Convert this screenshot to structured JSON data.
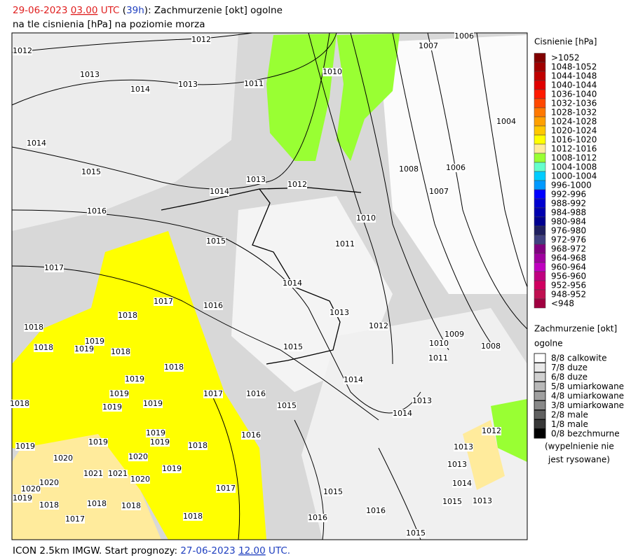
{
  "header": {
    "date": "29-06-2023",
    "hour": "03.00",
    "zone": "UTC",
    "open": "(",
    "lead": "39h",
    "close": "):",
    "title": "Zachmurzenie [okt] ogolne",
    "subtitle": "na tle cisnienia [hPa] na poziomie morza"
  },
  "footer": {
    "model": "ICON 2.5km IMGW. Start prognozy:",
    "date": "27-06-2023",
    "hour": "12.00",
    "zone": "UTC."
  },
  "pressure_legend": {
    "title": "Cisnienie [hPa]",
    "items": [
      {
        "label": ">1052",
        "color": "#800000"
      },
      {
        "label": "1048-1052",
        "color": "#a00000"
      },
      {
        "label": "1044-1048",
        "color": "#c00000"
      },
      {
        "label": "1040-1044",
        "color": "#e00000"
      },
      {
        "label": "1036-1040",
        "color": "#ff1a00"
      },
      {
        "label": "1032-1036",
        "color": "#ff4800"
      },
      {
        "label": "1028-1032",
        "color": "#ff7800"
      },
      {
        "label": "1024-1028",
        "color": "#ffa000"
      },
      {
        "label": "1020-1024",
        "color": "#ffc800"
      },
      {
        "label": "1016-1020",
        "color": "#ffff00"
      },
      {
        "label": "1012-1016",
        "color": "#ffeb9c"
      },
      {
        "label": "1008-1012",
        "color": "#99ff33"
      },
      {
        "label": "1004-1008",
        "color": "#66ffcc"
      },
      {
        "label": "1000-1004",
        "color": "#00ccff"
      },
      {
        "label": "996-1000",
        "color": "#0099ff"
      },
      {
        "label": "992-996",
        "color": "#0000ff"
      },
      {
        "label": "988-992",
        "color": "#0000d0"
      },
      {
        "label": "984-988",
        "color": "#0000b0"
      },
      {
        "label": "980-984",
        "color": "#000090"
      },
      {
        "label": "976-980",
        "color": "#202060"
      },
      {
        "label": "972-976",
        "color": "#404080"
      },
      {
        "label": "968-972",
        "color": "#800080"
      },
      {
        "label": "964-968",
        "color": "#a000a0"
      },
      {
        "label": "960-964",
        "color": "#c000c0"
      },
      {
        "label": "956-960",
        "color": "#c00080"
      },
      {
        "label": "952-956",
        "color": "#d00060"
      },
      {
        "label": "948-952",
        "color": "#c01050"
      },
      {
        "label": "<948",
        "color": "#a00040"
      }
    ]
  },
  "cloud_legend": {
    "title": "Zachmurzenie [okt]",
    "subtitle": "ogolne",
    "items": [
      {
        "label": "8/8 calkowite",
        "color": "#ffffff"
      },
      {
        "label": "7/8 duze",
        "color": "#e8e8e8"
      },
      {
        "label": "6/8 duze",
        "color": "#d0d0d0"
      },
      {
        "label": "5/8 umiarkowane",
        "color": "#b8b8b8"
      },
      {
        "label": "4/8 umiarkowane",
        "color": "#a0a0a0"
      },
      {
        "label": "3/8 umiarkowane",
        "color": "#888888"
      },
      {
        "label": "2/8 male",
        "color": "#606060"
      },
      {
        "label": "1/8 male",
        "color": "#383838"
      },
      {
        "label": "0/8 bezchmurne",
        "color": "#000000"
      }
    ],
    "note": [
      "(wypelnienie nie",
      "jest rysowane)"
    ]
  },
  "map": {
    "isobar_labels": [
      "1012",
      "1012",
      "1013",
      "1014",
      "1013",
      "1011",
      "1010",
      "1007",
      "1006",
      "1004",
      "1014",
      "1015",
      "1013",
      "1012",
      "1008",
      "1006",
      "1007",
      "1014",
      "1016",
      "1010",
      "1015",
      "1011",
      "1017",
      "1014",
      "1017",
      "1016",
      "1013",
      "1018",
      "1018",
      "1012",
      "1009",
      "1010",
      "1008",
      "1018",
      "1019",
      "1019",
      "1018",
      "1015",
      "1011",
      "1018",
      "1019",
      "1014",
      "1017",
      "1016",
      "1019",
      "1019",
      "1013",
      "1018",
      "1019",
      "1015",
      "1014",
      "1012",
      "1016",
      "1019",
      "1019",
      "1019",
      "1018",
      "1013",
      "1019",
      "1020",
      "1020",
      "1013",
      "1019",
      "1021",
      "1021",
      "1020",
      "1020",
      "1014",
      "1017",
      "1020",
      "1015",
      "1015",
      "1013",
      "1019",
      "1018",
      "1018",
      "1018",
      "1016",
      "1018",
      "1016",
      "1017",
      "1015"
    ]
  }
}
